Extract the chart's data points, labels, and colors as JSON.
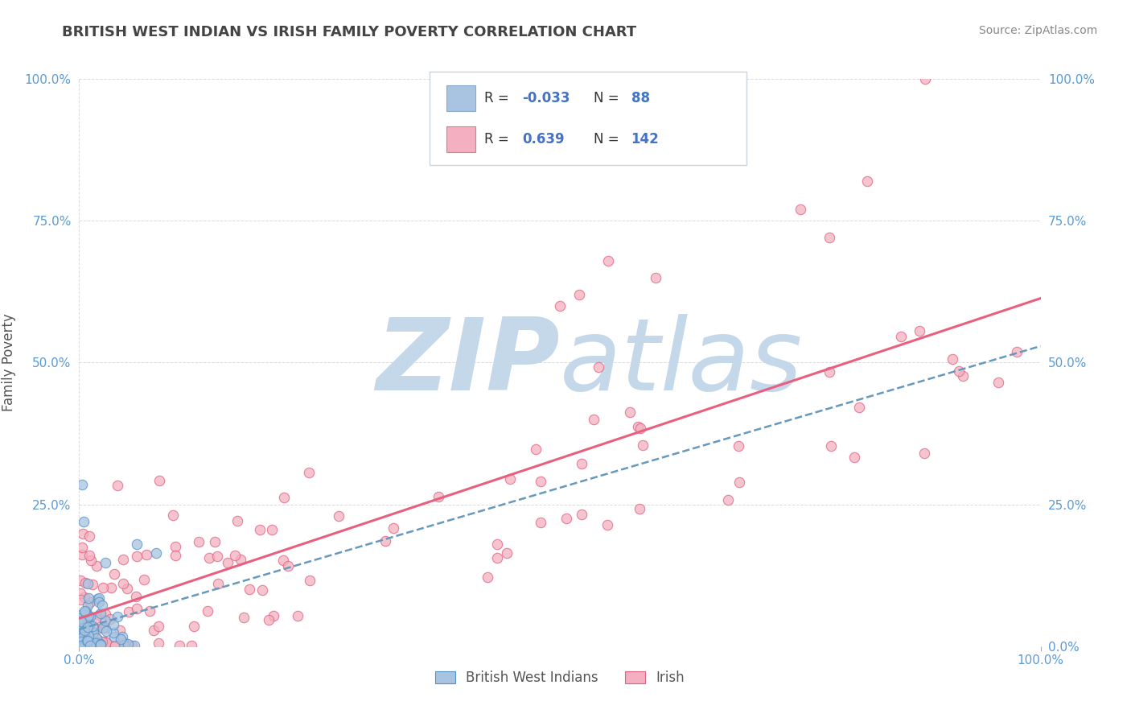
{
  "title": "BRITISH WEST INDIAN VS IRISH FAMILY POVERTY CORRELATION CHART",
  "source_text": "Source: ZipAtlas.com",
  "ylabel": "Family Poverty",
  "bwi_color": "#a8c4e0",
  "bwi_edge_color": "#5590c8",
  "irish_color": "#f4b0c0",
  "irish_edge_color": "#e06080",
  "bwi_line_color": "#6699bb",
  "irish_line_color": "#e86080",
  "tick_label_color": "#5b9bd5",
  "grid_color": "#cccccc",
  "watermark_color": "#c5d8ea",
  "background_color": "#ffffff",
  "title_color": "#444444",
  "title_fontsize": 13,
  "ylabel_color": "#555555",
  "source_color": "#888888"
}
